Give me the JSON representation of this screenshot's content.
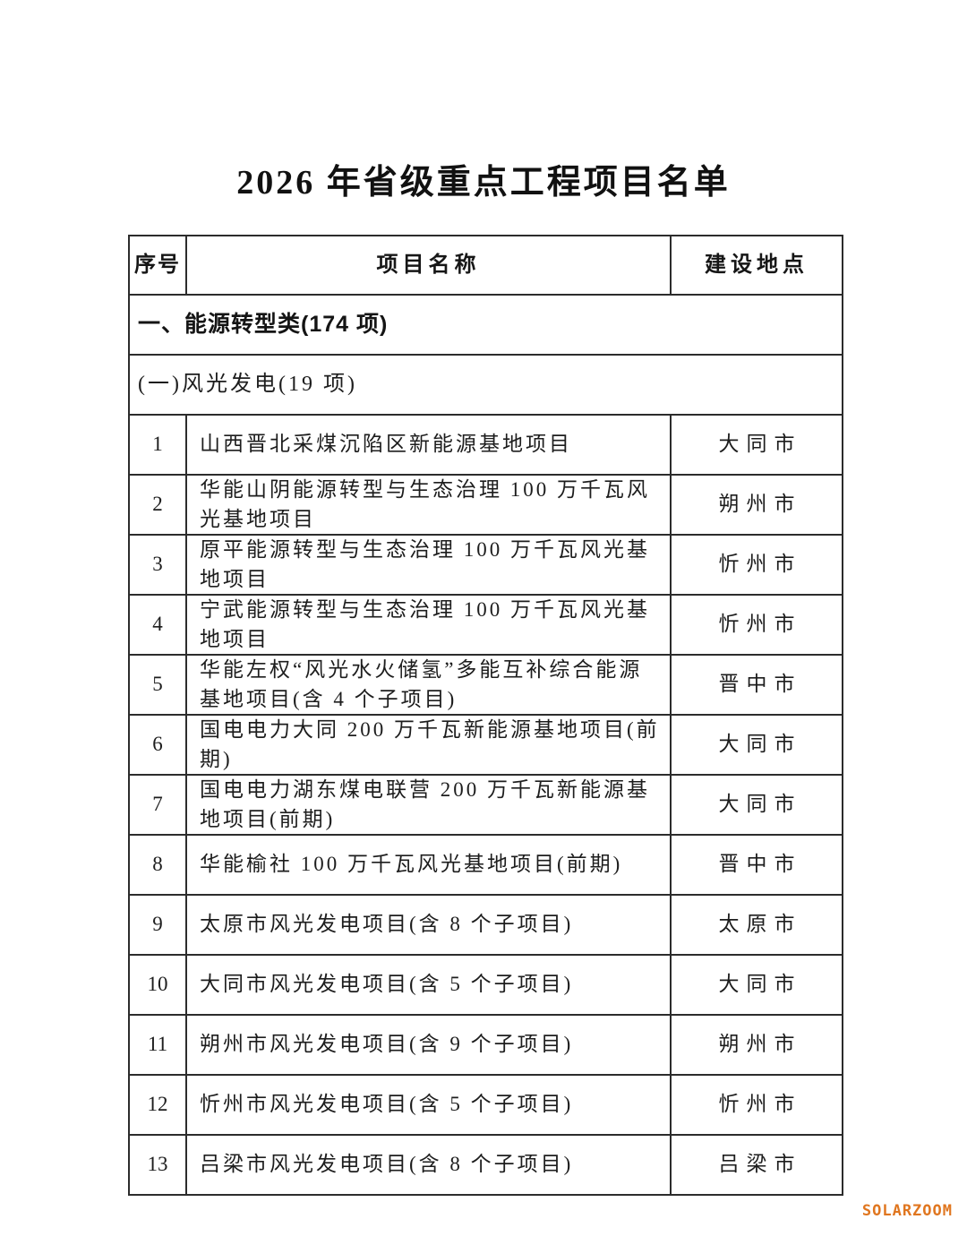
{
  "page": {
    "title": "2026 年省级重点工程项目名单",
    "watermark": "SOLARZOOM",
    "watermark_color": "#e0761f",
    "border_color": "#2c2c2c",
    "text_color": "#1d1d1d"
  },
  "table": {
    "headers": {
      "no": "序号",
      "name": "项目名称",
      "location": "建设地点"
    },
    "section": "一、能源转型类(174 项)",
    "subsection": "(一)风光发电(19 项)",
    "rows": [
      {
        "no": "1",
        "name": "山西晋北采煤沉陷区新能源基地项目",
        "location": "大同市"
      },
      {
        "no": "2",
        "name": "华能山阴能源转型与生态治理 100 万千瓦风光基地项目",
        "location": "朔州市"
      },
      {
        "no": "3",
        "name": "原平能源转型与生态治理 100 万千瓦风光基地项目",
        "location": "忻州市"
      },
      {
        "no": "4",
        "name": "宁武能源转型与生态治理 100 万千瓦风光基地项目",
        "location": "忻州市"
      },
      {
        "no": "5",
        "name": "华能左权“风光水火储氢”多能互补综合能源基地项目(含 4 个子项目)",
        "location": "晋中市"
      },
      {
        "no": "6",
        "name": "国电电力大同 200 万千瓦新能源基地项目(前期)",
        "location": "大同市"
      },
      {
        "no": "7",
        "name": "国电电力湖东煤电联营 200 万千瓦新能源基地项目(前期)",
        "location": "大同市"
      },
      {
        "no": "8",
        "name": "华能榆社 100 万千瓦风光基地项目(前期)",
        "location": "晋中市"
      },
      {
        "no": "9",
        "name": "太原市风光发电项目(含 8 个子项目)",
        "location": "太原市"
      },
      {
        "no": "10",
        "name": "大同市风光发电项目(含 5 个子项目)",
        "location": "大同市"
      },
      {
        "no": "11",
        "name": "朔州市风光发电项目(含 9 个子项目)",
        "location": "朔州市"
      },
      {
        "no": "12",
        "name": "忻州市风光发电项目(含 5 个子项目)",
        "location": "忻州市"
      },
      {
        "no": "13",
        "name": "吕梁市风光发电项目(含 8 个子项目)",
        "location": "吕梁市"
      }
    ]
  }
}
